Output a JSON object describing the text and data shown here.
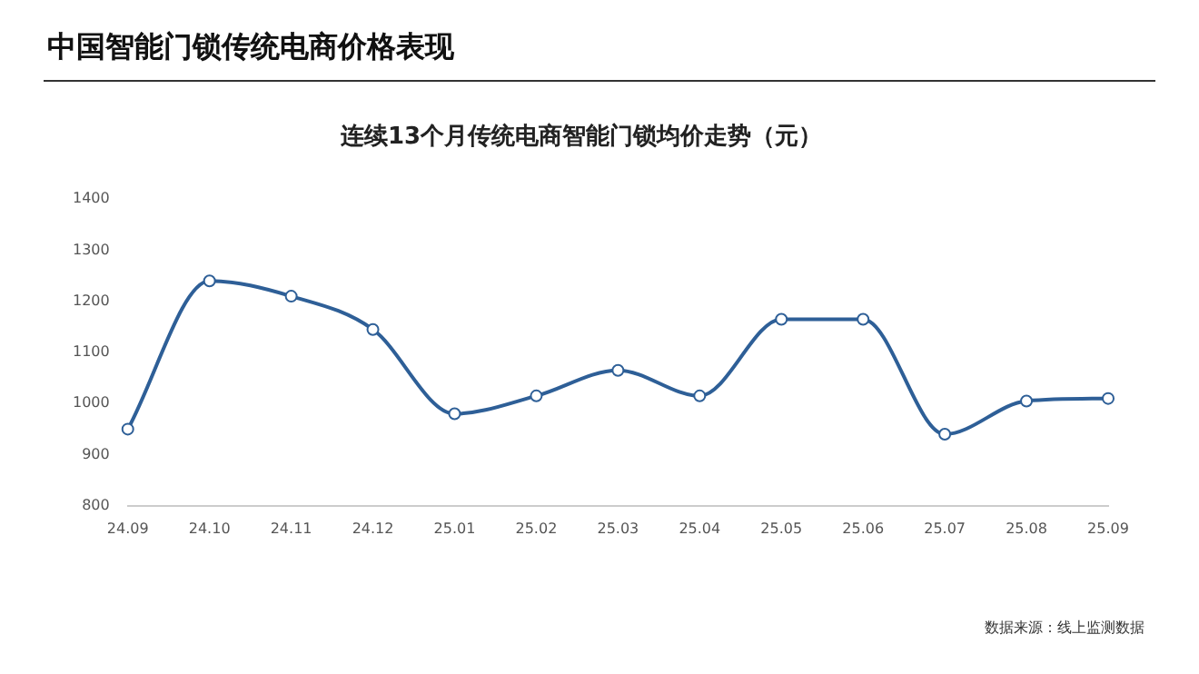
{
  "chart_data": {
    "type": "line",
    "title": "中国智能门锁传统电商价格表现",
    "subtitle": "连续13个月传统电商智能门锁均价走势（元）",
    "categories": [
      "24.09",
      "24.10",
      "24.11",
      "24.12",
      "25.01",
      "25.02",
      "25.03",
      "25.04",
      "25.05",
      "25.06",
      "25.07",
      "25.08",
      "25.09"
    ],
    "series": [
      {
        "color": "#2e5f97",
        "values": [
          950,
          1240,
          1210,
          1145,
          980,
          1015,
          1065,
          1015,
          1165,
          1165,
          940,
          1005,
          1010
        ]
      }
    ],
    "ylim": [
      800,
      1400
    ],
    "yticks": [
      800,
      900,
      1000,
      1100,
      1200,
      1300,
      1400
    ],
    "grid": false,
    "legend": false,
    "marker": "circle",
    "line_style": "solid",
    "annotations": [
      "数据来源：线上监测数据"
    ]
  }
}
